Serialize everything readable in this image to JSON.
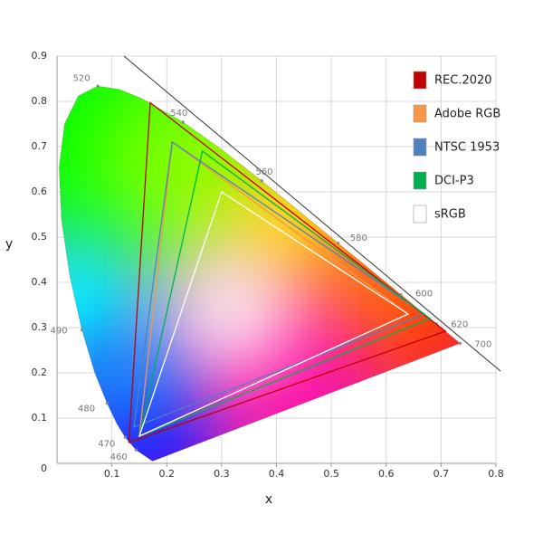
{
  "chart_data": {
    "type": "gamut",
    "x_label": "x",
    "y_label": "y",
    "xlim": [
      0,
      0.8
    ],
    "ylim": [
      0,
      0.9
    ],
    "xticks": [
      0.1,
      0.2,
      0.3,
      0.4,
      0.5,
      0.6,
      0.7,
      0.8
    ],
    "yticks": [
      0,
      0.1,
      0.2,
      0.3,
      0.4,
      0.5,
      0.6,
      0.7,
      0.8,
      0.9
    ],
    "grid": true,
    "legend": "upper right",
    "spectral_locus": {
      "x": [
        0.1741,
        0.144,
        0.1241,
        0.1096,
        0.0913,
        0.0687,
        0.0454,
        0.0235,
        0.0082,
        0.0039,
        0.0139,
        0.0389,
        0.0743,
        0.1142,
        0.1547,
        0.2296,
        0.3016,
        0.3731,
        0.4441,
        0.5125,
        0.5752,
        0.627,
        0.6915,
        0.7347
      ],
      "y": [
        0.005,
        0.0297,
        0.0578,
        0.0868,
        0.1327,
        0.2007,
        0.295,
        0.4127,
        0.5384,
        0.6548,
        0.7502,
        0.812,
        0.8338,
        0.8262,
        0.8059,
        0.7543,
        0.6923,
        0.6245,
        0.5547,
        0.4866,
        0.4242,
        0.3725,
        0.3083,
        0.2653
      ]
    },
    "wavelengths": {
      "labels": [
        460,
        470,
        480,
        490,
        520,
        540,
        560,
        580,
        600,
        620,
        700
      ],
      "x": [
        0.144,
        0.1241,
        0.0913,
        0.0454,
        0.0743,
        0.2296,
        0.3731,
        0.5125,
        0.627,
        0.6915,
        0.7347
      ],
      "y": [
        0.0297,
        0.0578,
        0.1327,
        0.295,
        0.8338,
        0.7543,
        0.6245,
        0.4866,
        0.3725,
        0.3083,
        0.2653
      ]
    },
    "series": [
      {
        "name": "REC.2020",
        "color": "#c00000",
        "x": [
          0.708,
          0.17,
          0.131
        ],
        "y": [
          0.292,
          0.797,
          0.046
        ]
      },
      {
        "name": "Adobe RGB",
        "color": "#f79646",
        "x": [
          0.64,
          0.21,
          0.15
        ],
        "y": [
          0.33,
          0.71,
          0.06
        ]
      },
      {
        "name": "NTSC 1953",
        "color": "#4f81bd",
        "x": [
          0.67,
          0.21,
          0.14
        ],
        "y": [
          0.33,
          0.71,
          0.08
        ]
      },
      {
        "name": "DCI-P3",
        "color": "#00b050",
        "x": [
          0.68,
          0.265,
          0.15
        ],
        "y": [
          0.32,
          0.69,
          0.06
        ]
      },
      {
        "name": "sRGB",
        "color": "#ffffff",
        "x": [
          0.64,
          0.3,
          0.15
        ],
        "y": [
          0.33,
          0.6,
          0.06
        ]
      }
    ]
  }
}
